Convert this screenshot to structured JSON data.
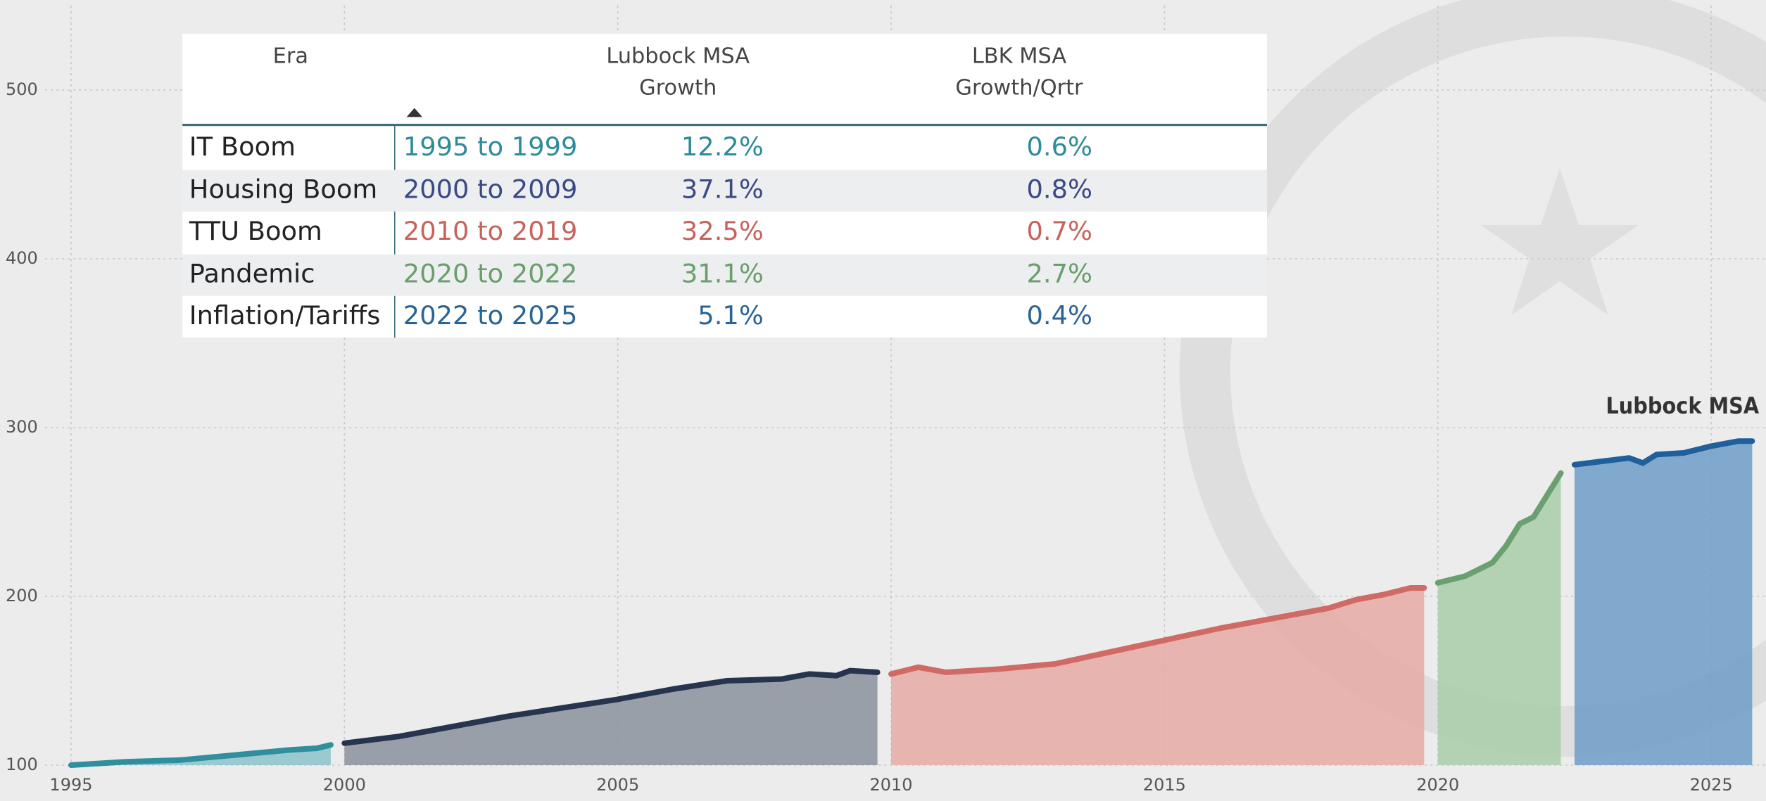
{
  "chart_data": {
    "type": "area",
    "xlim": [
      1993.7,
      2026
    ],
    "xticks": [
      1995,
      2000,
      2005,
      2010,
      2015,
      2020,
      2025
    ],
    "ylim": [
      100,
      550
    ],
    "yticks": [
      100,
      200,
      300,
      400,
      500
    ],
    "grid": true,
    "line_label": "Lubbock MSA",
    "series": [
      {
        "color": "#2f8f9d",
        "area_color": "#8cc3cb",
        "x": [
          1995,
          1995.5,
          1996,
          1996.5,
          1997,
          1997.5,
          1998,
          1998.5,
          1999,
          1999.5,
          1999.75
        ],
        "values": [
          100,
          101,
          102,
          102.5,
          103,
          104.5,
          106,
          107.5,
          109,
          110,
          112
        ]
      },
      {
        "color": "#26344e",
        "area_color": "#8a929e",
        "x": [
          2000,
          2001,
          2002,
          2003,
          2004,
          2005,
          2006,
          2007,
          2008,
          2008.5,
          2009,
          2009.25,
          2009.75
        ],
        "values": [
          113,
          117,
          123,
          129,
          134,
          139,
          145,
          150,
          151,
          154,
          153,
          156,
          155
        ]
      },
      {
        "color": "#d06a64",
        "area_color": "#e6aaa6",
        "x": [
          2010,
          2010.5,
          2011,
          2012,
          2013,
          2014,
          2015,
          2016,
          2017,
          2018,
          2018.5,
          2019,
          2019.5,
          2019.75
        ],
        "values": [
          154,
          158,
          155,
          157,
          160,
          167,
          174,
          181,
          187,
          193,
          198,
          201,
          205,
          205
        ]
      },
      {
        "color": "#6aa070",
        "area_color": "#a9cca9",
        "x": [
          2020,
          2020.5,
          2021,
          2021.25,
          2021.5,
          2021.75,
          2022,
          2022.25
        ],
        "values": [
          208,
          212,
          220,
          230,
          243,
          247,
          260,
          273
        ]
      },
      {
        "color": "#1f5f9c",
        "area_color": "#6f9dc8",
        "x": [
          2022.5,
          2023,
          2023.5,
          2023.75,
          2024,
          2024.5,
          2025,
          2025.5,
          2025.75
        ],
        "values": [
          278,
          280,
          282,
          279,
          284,
          285,
          289,
          292,
          292
        ]
      }
    ]
  },
  "table": {
    "columns": [
      "Era",
      "Lubbock MSA\nGrowth",
      "LBK MSA\nGrowth/Qrtr"
    ],
    "row_colors": [
      "#2e8b99",
      "#3b4a85",
      "#c8625c",
      "#6a9e6a",
      "#2a6496"
    ],
    "rows": [
      [
        "IT Boom",
        "1995 to 1999",
        "12.2%",
        "0.6%"
      ],
      [
        "Housing Boom",
        "2000 to 2009",
        "37.1%",
        "0.8%"
      ],
      [
        "TTU Boom",
        "2010 to 2019",
        "32.5%",
        "0.7%"
      ],
      [
        "Pandemic",
        "2020 to 2022",
        "31.1%",
        "2.7%"
      ],
      [
        "Inflation/Tariffs",
        "2022 to 2025",
        "5.1%",
        "0.4%"
      ]
    ]
  }
}
